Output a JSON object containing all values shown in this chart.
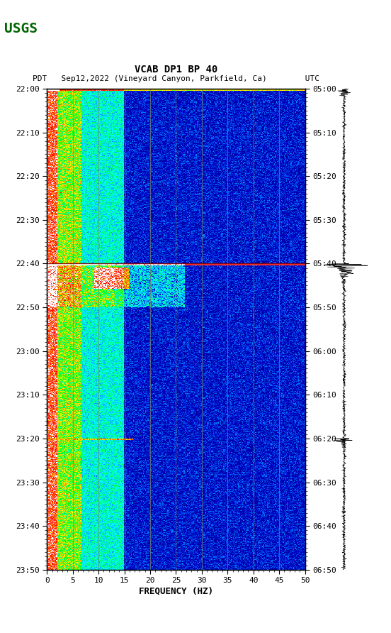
{
  "title_line1": "VCAB DP1 BP 40",
  "title_line2": "PDT   Sep12,2022 (Vineyard Canyon, Parkfield, Ca)        UTC",
  "xlabel": "FREQUENCY (HZ)",
  "left_times": [
    "22:00",
    "22:10",
    "22:20",
    "22:30",
    "22:40",
    "22:50",
    "23:00",
    "23:10",
    "23:20",
    "23:30",
    "23:40",
    "23:50"
  ],
  "right_times": [
    "05:00",
    "05:10",
    "05:20",
    "05:30",
    "05:40",
    "05:50",
    "06:00",
    "06:10",
    "06:20",
    "06:30",
    "06:40",
    "06:50"
  ],
  "freq_ticks": [
    0,
    5,
    10,
    15,
    20,
    25,
    30,
    35,
    40,
    45,
    50
  ],
  "freq_gridlines": [
    5,
    10,
    15,
    20,
    25,
    30,
    35,
    40,
    45
  ],
  "bg_color": "#ffffff",
  "spectrogram_bg": "#000080",
  "time_total_minutes": 110,
  "freq_max": 50,
  "noise_floor": 0.05,
  "event1_minute": 0,
  "event2_minute": 40,
  "event3_minute": 80
}
